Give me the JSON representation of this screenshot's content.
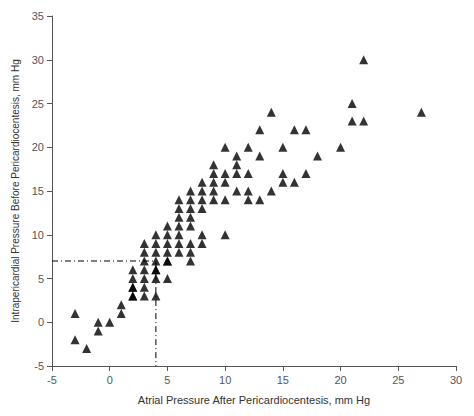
{
  "chart_data": {
    "type": "scatter",
    "xlabel": "Atrial Pressure After Pericardiocentesis, mm Hg",
    "ylabel": "Intrapericardial Pressure Before Pericardiocentesis, mm Hg",
    "series": [
      {
        "type": "scatter",
        "color": "black",
        "marker": "triangle",
        "x": [
          -3,
          -3,
          -2,
          -1,
          -1,
          0,
          1,
          1,
          2,
          2,
          2,
          2,
          2,
          2,
          3,
          3,
          3,
          3,
          3,
          3,
          3,
          4,
          4,
          4,
          4,
          4,
          4,
          4,
          4,
          5,
          5,
          5,
          5,
          5,
          5,
          5,
          6,
          6,
          6,
          6,
          6,
          6,
          6,
          7,
          7,
          7,
          7,
          7,
          7,
          7,
          7,
          8,
          8,
          8,
          8,
          8,
          8,
          9,
          9,
          9,
          9,
          9,
          10,
          10,
          10,
          10,
          10,
          11,
          11,
          11,
          11,
          12,
          12,
          12,
          12,
          13,
          13,
          13,
          14,
          14,
          15,
          15,
          15,
          16,
          16,
          17,
          17,
          18,
          20,
          21,
          21,
          22,
          22,
          27
        ],
        "values": [
          1,
          -2,
          -3,
          0,
          -1,
          0,
          2,
          1,
          3,
          4,
          5,
          6,
          3,
          4,
          4,
          5,
          6,
          7,
          8,
          9,
          3,
          6,
          7,
          8,
          9,
          10,
          5,
          6,
          3,
          8,
          9,
          10,
          11,
          7,
          7,
          5,
          10,
          11,
          12,
          13,
          14,
          8,
          9,
          11,
          12,
          13,
          14,
          15,
          8,
          9,
          7,
          13,
          14,
          15,
          16,
          10,
          9,
          15,
          16,
          17,
          18,
          14,
          14,
          16,
          17,
          20,
          10,
          17,
          18,
          19,
          15,
          15,
          17,
          20,
          14,
          14,
          19,
          22,
          15,
          24,
          16,
          17,
          20,
          22,
          16,
          17,
          22,
          19,
          20,
          23,
          25,
          23,
          30,
          24
        ]
      },
      {
        "type": "line",
        "color": "black",
        "line_style": "dashdot",
        "x": [
          -5,
          4,
          4
        ],
        "values": [
          7,
          7,
          -5
        ]
      }
    ],
    "xlim": [
      -5,
      30
    ],
    "xticks": [
      -5,
      0,
      5,
      10,
      15,
      20,
      25,
      30
    ],
    "ylim": [
      -5,
      35
    ],
    "yticks": [
      -5,
      0,
      5,
      10,
      15,
      20,
      25,
      30,
      35
    ],
    "grid": false
  }
}
